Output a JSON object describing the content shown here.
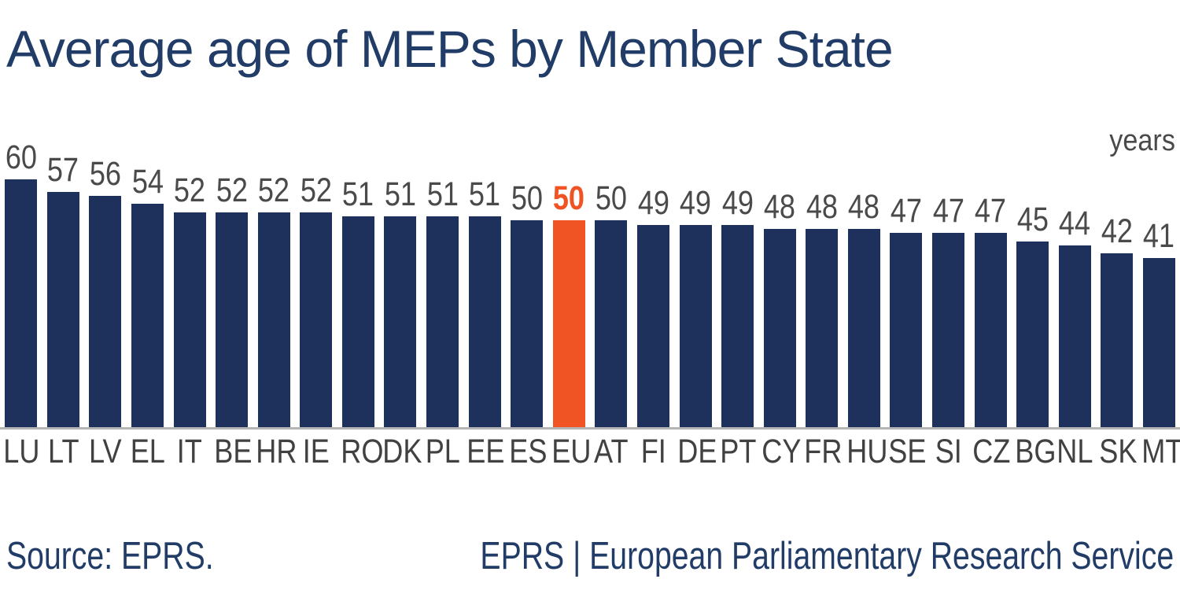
{
  "title": "Average age of MEPs by Member State",
  "unit_label": "years",
  "footer": {
    "source": "Source: EPRS.",
    "service": "EPRS | European Parliamentary Research Service"
  },
  "colors": {
    "bar": "#1e305c",
    "highlight": "#f05424",
    "title": "#223c68",
    "value_label": "#4a4a4a",
    "axis_label": "#414141",
    "baseline": "#b5b5b5"
  },
  "chart_data": {
    "type": "bar",
    "title": "Average age of MEPs by Member State",
    "unit": "years",
    "categories": [
      "LU",
      "LT",
      "LV",
      "EL",
      "IT",
      "BE",
      "HR",
      "IE",
      "RO",
      "DK",
      "PL",
      "EE",
      "ES",
      "EU",
      "AT",
      "FI",
      "DE",
      "PT",
      "CY",
      "FR",
      "HU",
      "SE",
      "SI",
      "CZ",
      "BG",
      "NL",
      "SK",
      "MT"
    ],
    "values": [
      60,
      57,
      56,
      54,
      52,
      52,
      52,
      52,
      51,
      51,
      51,
      51,
      50,
      50,
      50,
      49,
      49,
      49,
      48,
      48,
      48,
      47,
      47,
      47,
      45,
      44,
      42,
      41
    ],
    "highlight_category": "EU",
    "highlight_color": "#f05424",
    "bar_color": "#1e305c",
    "ylim": [
      0,
      60
    ],
    "grid": false,
    "value_labels": true,
    "legend": false
  }
}
